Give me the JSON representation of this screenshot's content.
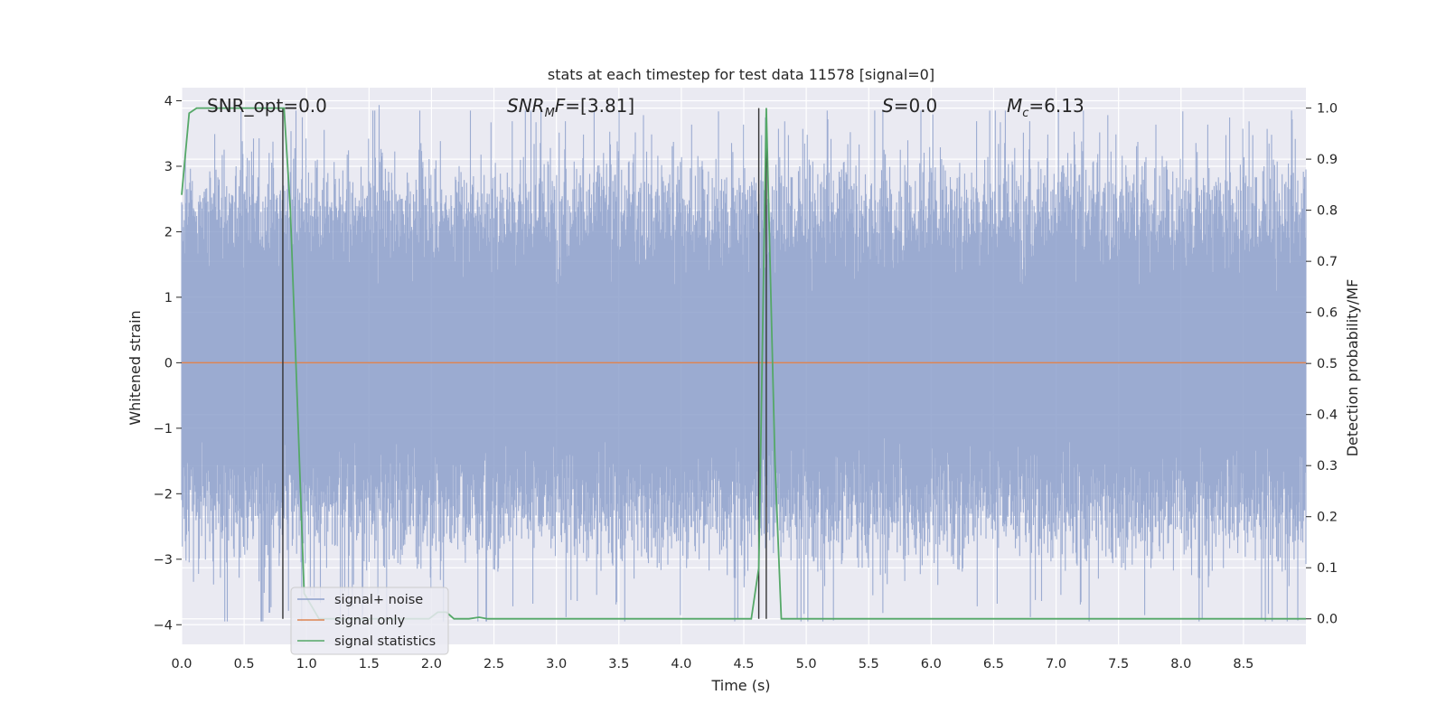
{
  "chart_data": {
    "type": "line",
    "title": "stats at each timestep for test data 11578 [signal=0]",
    "xlabel": "Time (s)",
    "ylabel": "Whitened strain",
    "y2label": "Detection probability/MF",
    "xlim": [
      0,
      9.0
    ],
    "ylim": [
      -4.3,
      4.2
    ],
    "y2lim": [
      -0.05,
      1.04
    ],
    "x_ticks": [
      "0.0",
      "0.5",
      "1.0",
      "1.5",
      "2.0",
      "2.5",
      "3.0",
      "3.5",
      "4.0",
      "4.5",
      "5.0",
      "5.5",
      "6.0",
      "6.5",
      "7.0",
      "7.5",
      "8.0",
      "8.5"
    ],
    "y_ticks": [
      "4",
      "3",
      "2",
      "1",
      "0",
      "−1",
      "−2",
      "−3",
      "−4"
    ],
    "y2_ticks": [
      "1.0",
      "0.9",
      "0.8",
      "0.7",
      "0.6",
      "0.5",
      "0.4",
      "0.3",
      "0.2",
      "0.1",
      "0.0"
    ],
    "grid": true,
    "annotations": {
      "snr_opt": {
        "base": "SNR_opt=0.0"
      },
      "snr_mf": {
        "sym": "SNR",
        "sub": "M",
        "sym2": "F",
        "rest": "=[3.81]"
      },
      "s": {
        "sym": "S",
        "rest": "=0.0"
      },
      "mc": {
        "sym": "M",
        "sub": "c",
        "rest": "=6.13"
      }
    },
    "legend": {
      "position": "lower-left",
      "entries": [
        "signal+ noise",
        "signal only",
        "signal statistics"
      ]
    },
    "colors": {
      "noise": "#8da0cb",
      "signal": "#dd8452",
      "stats": "#55a868",
      "vline": "#333333",
      "bg": "#eaeaf2"
    },
    "series": [
      {
        "name": "signal+ noise",
        "axis": "left",
        "description_envelope": "dense noise band, roughly ±2.5 with spikes to about ±3.8",
        "upper_envelope_amplitude": 2.4,
        "lower_envelope_amplitude": -2.3,
        "max": 3.85,
        "min": -3.95
      },
      {
        "name": "signal only",
        "axis": "left",
        "x": [
          0,
          9.0
        ],
        "y": [
          0,
          0
        ]
      },
      {
        "name": "signal statistics",
        "axis": "right",
        "x": [
          0.0,
          0.06,
          0.12,
          0.2,
          0.4,
          0.6,
          0.8,
          0.82,
          0.87,
          0.93,
          0.98,
          1.1,
          1.5,
          1.9,
          1.98,
          2.05,
          2.12,
          2.18,
          2.3,
          2.38,
          2.45,
          2.6,
          3.0,
          3.5,
          4.0,
          4.4,
          4.56,
          4.62,
          4.68,
          4.75,
          4.8,
          4.9,
          5.5,
          6.0,
          7.0,
          8.0,
          9.0
        ],
        "y": [
          0.83,
          0.99,
          1.0,
          1.0,
          1.0,
          1.0,
          1.0,
          1.0,
          0.8,
          0.4,
          0.05,
          0.0,
          0.0,
          0.0,
          0.0,
          0.013,
          0.013,
          0.0,
          0.0,
          0.003,
          0.0,
          0.0,
          0.0,
          0.0,
          0.0,
          0.0,
          0.0,
          0.1,
          1.0,
          0.3,
          0.0,
          0.0,
          0.0,
          0.0,
          0.0,
          0.0,
          0.0
        ]
      }
    ],
    "vertical_lines_x": [
      0.81,
      4.62,
      4.68
    ]
  }
}
